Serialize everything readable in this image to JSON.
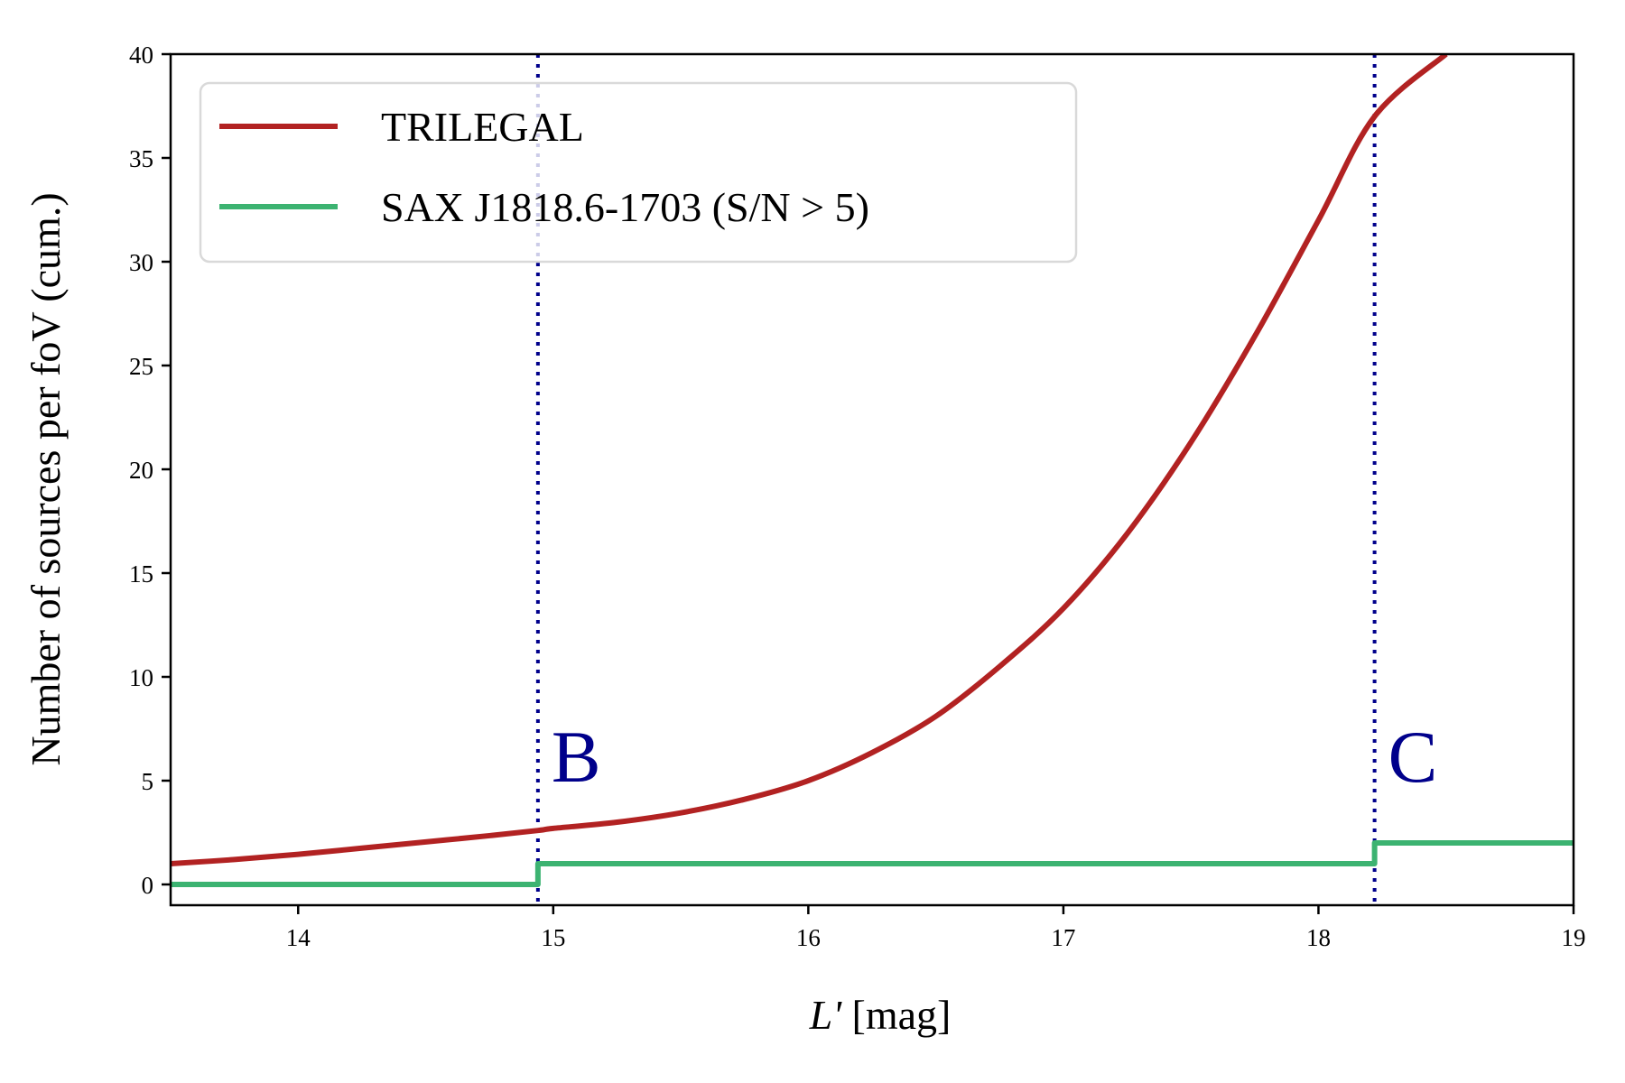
{
  "chart_data": {
    "type": "line",
    "xlabel_italic": "L'",
    "xlabel_rest": " [mag]",
    "ylabel": "Number of sources per foV (cum.)",
    "xlim": [
      13.5,
      19
    ],
    "ylim": [
      -1,
      40
    ],
    "x_ticks": [
      14,
      15,
      16,
      17,
      18,
      19
    ],
    "y_ticks": [
      0,
      5,
      10,
      15,
      20,
      25,
      30,
      35,
      40
    ],
    "grid": false,
    "legend_position": "top-left",
    "series": [
      {
        "name": "TRILEGAL",
        "color": "#b22222",
        "style": "line",
        "x": [
          13.5,
          13.75,
          14.0,
          14.25,
          14.5,
          14.75,
          14.94,
          15.0,
          15.25,
          15.5,
          15.75,
          16.0,
          16.25,
          16.5,
          16.75,
          17.0,
          17.25,
          17.5,
          17.75,
          18.0,
          18.22,
          18.5
        ],
        "y": [
          1.0,
          1.2,
          1.45,
          1.75,
          2.05,
          2.35,
          2.6,
          2.7,
          3.0,
          3.45,
          4.1,
          5.0,
          6.35,
          8.1,
          10.5,
          13.3,
          16.9,
          21.3,
          26.4,
          32.0,
          37.0,
          40.0
        ]
      },
      {
        "name": "SAX J1818.6-1703 (S/N > 5)",
        "color": "#3cb371",
        "style": "step",
        "x": [
          13.5,
          14.94,
          18.22,
          19.0
        ],
        "y": [
          0,
          1,
          2,
          2
        ]
      }
    ],
    "vlines": [
      {
        "x": 14.94,
        "label": "B",
        "color": "#00008b"
      },
      {
        "x": 18.22,
        "label": "C",
        "color": "#00008b"
      }
    ]
  }
}
